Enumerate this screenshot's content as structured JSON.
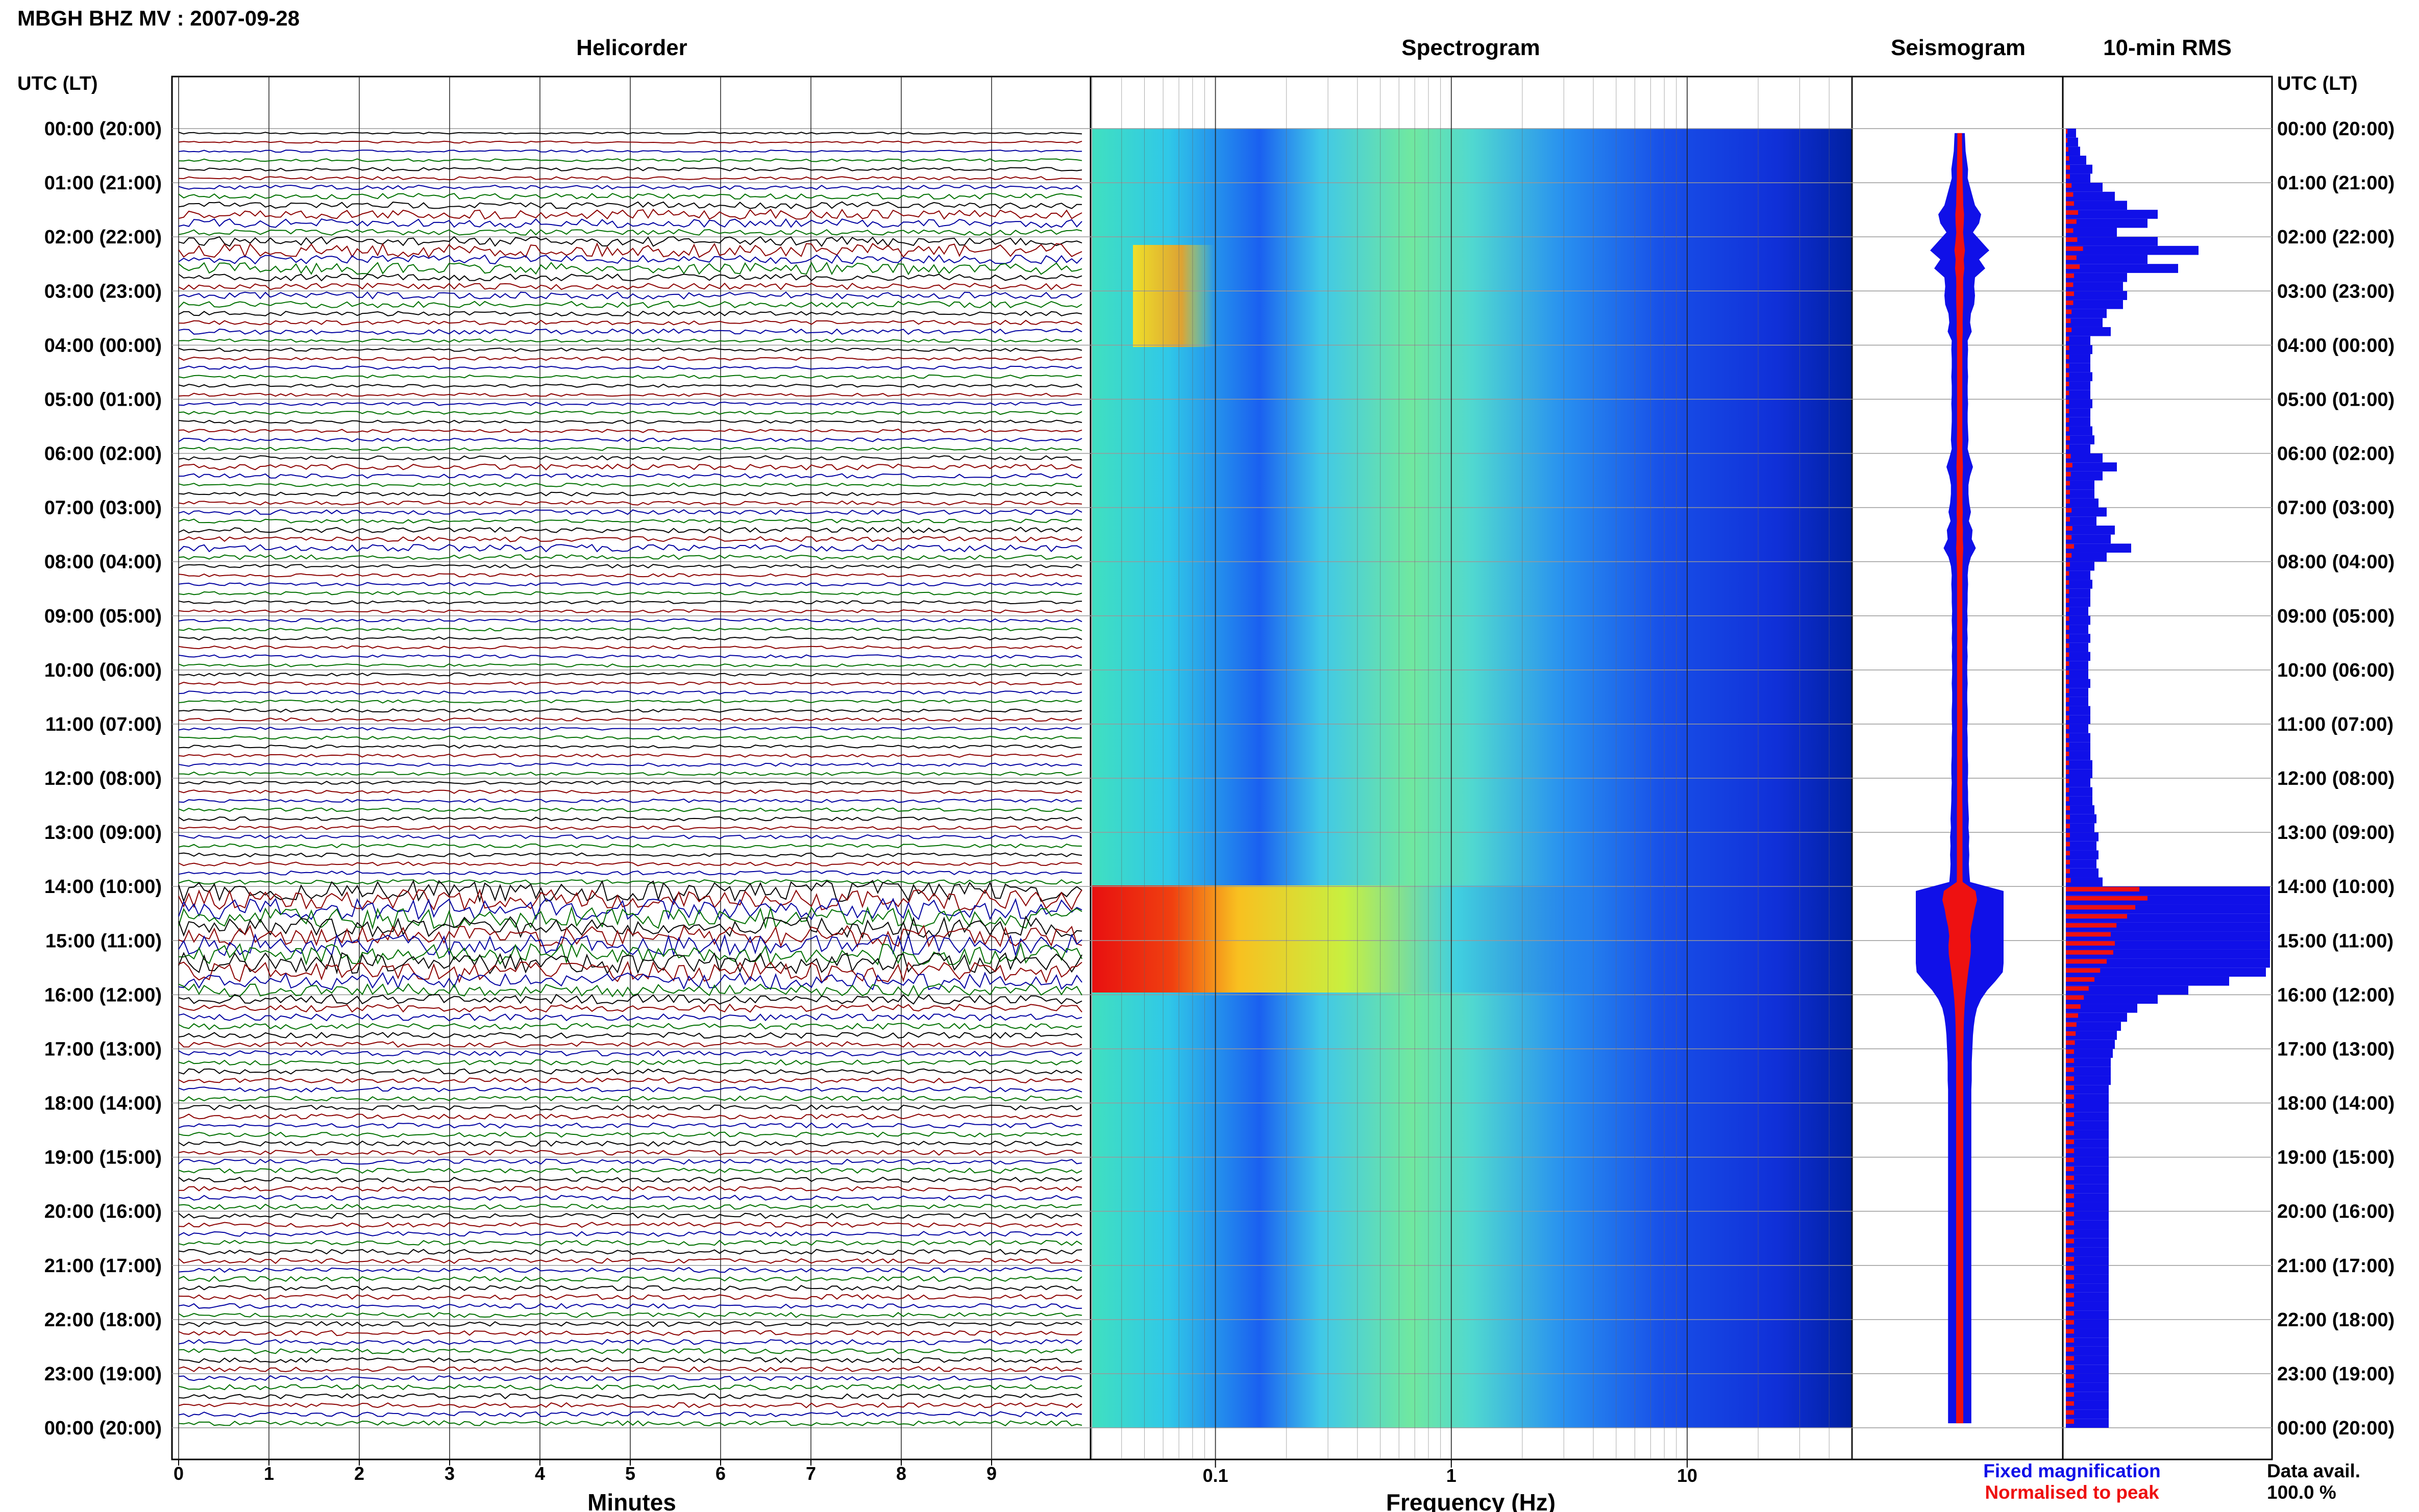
{
  "header": {
    "station_title": "MBGH BHZ MV : 2007-09-28"
  },
  "panels": {
    "helicorder": "Helicorder",
    "spectrogram": "Spectrogram",
    "seismogram": "Seismogram",
    "rms": "10-min RMS"
  },
  "axes": {
    "left_axis_title": "UTC (LT)",
    "right_axis_title": "UTC (LT)",
    "time_labels": [
      "00:00 (20:00)",
      "01:00 (21:00)",
      "02:00 (22:00)",
      "03:00 (23:00)",
      "04:00 (00:00)",
      "05:00 (01:00)",
      "06:00 (02:00)",
      "07:00 (03:00)",
      "08:00 (04:00)",
      "09:00 (05:00)",
      "10:00 (06:00)",
      "11:00 (07:00)",
      "12:00 (08:00)",
      "13:00 (09:00)",
      "14:00 (10:00)",
      "15:00 (11:00)",
      "16:00 (12:00)",
      "17:00 (13:00)",
      "18:00 (14:00)",
      "19:00 (15:00)",
      "20:00 (16:00)",
      "21:00 (17:00)",
      "22:00 (18:00)",
      "23:00 (19:00)",
      "00:00 (20:00)"
    ],
    "minutes_label": "Minutes",
    "minutes_ticks": [
      "0",
      "1",
      "2",
      "3",
      "4",
      "5",
      "6",
      "7",
      "8",
      "9"
    ],
    "frequency_label": "Frequency (Hz)",
    "frequency_ticks": [
      "0.1",
      "1",
      "10"
    ]
  },
  "legend": {
    "fixed_label": "Fixed magnification",
    "normalised_label": "Normalised to peak",
    "fixed_color": "#1010e8",
    "normalised_color": "#ee1111"
  },
  "availability": {
    "label": "Data avail.",
    "value": "100.0 %"
  },
  "colors": {
    "helicorder_traces": [
      "#000000",
      "#8b0000",
      "#0000a0",
      "#007000"
    ],
    "spectrogram_low": "#1030e0",
    "spectrogram_high": "#e81010",
    "rms_fixed": "#1010e8",
    "rms_normalised": "#ee1111"
  },
  "chart_data": {
    "type": "heatmap",
    "title": "MBGH BHZ MV : 2007-09-28",
    "ylabel": "UTC (LT)",
    "time_ylim_hours": [
      0,
      24
    ],
    "helicorder": {
      "xlabel": "Minutes",
      "xlim": [
        0,
        10
      ],
      "rows_per_hour": 6,
      "event_times_utc": [
        "01:20",
        "02:40",
        "06:00",
        "07:30",
        "13:00",
        "14:00",
        "15:00",
        "21:40"
      ]
    },
    "spectrogram": {
      "xlabel": "Frequency (Hz)",
      "xscale": "log",
      "xlim": [
        0.03,
        50
      ],
      "xticks": [
        0.1,
        1,
        10
      ],
      "peak_band_hz": [
        0.05,
        0.1
      ],
      "strong_event_utc": "14:00"
    },
    "rms_10min": {
      "series": [
        {
          "name": "Fixed magnification",
          "values": [
            0.05,
            0.06,
            0.07,
            0.1,
            0.13,
            0.12,
            0.18,
            0.24,
            0.3,
            0.45,
            0.4,
            0.25,
            0.45,
            0.65,
            0.4,
            0.55,
            0.3,
            0.28,
            0.3,
            0.28,
            0.2,
            0.18,
            0.22,
            0.12,
            0.13,
            0.12,
            0.12,
            0.13,
            0.12,
            0.12,
            0.13,
            0.12,
            0.12,
            0.13,
            0.14,
            0.12,
            0.18,
            0.25,
            0.18,
            0.14,
            0.14,
            0.16,
            0.2,
            0.15,
            0.24,
            0.22,
            0.32,
            0.2,
            0.14,
            0.12,
            0.13,
            0.12,
            0.12,
            0.11,
            0.12,
            0.11,
            0.12,
            0.11,
            0.12,
            0.11,
            0.11,
            0.12,
            0.11,
            0.11,
            0.12,
            0.12,
            0.11,
            0.12,
            0.12,
            0.12,
            0.13,
            0.13,
            0.12,
            0.13,
            0.13,
            0.14,
            0.15,
            0.14,
            0.16,
            0.15,
            0.16,
            0.15,
            0.16,
            0.18,
            1.0,
            1.0,
            1.0,
            1.0,
            1.0,
            1.0,
            1.0,
            1.0,
            1.0,
            0.98,
            0.8,
            0.6,
            0.45,
            0.35,
            0.3,
            0.27,
            0.25,
            0.24,
            0.23,
            0.22,
            0.22,
            0.22,
            0.21,
            0.21,
            0.21,
            0.21,
            0.21,
            0.21,
            0.21,
            0.21,
            0.21,
            0.21,
            0.21,
            0.21,
            0.21,
            0.21,
            0.21,
            0.21,
            0.21,
            0.21,
            0.21,
            0.21,
            0.21,
            0.21,
            0.21,
            0.21,
            0.21,
            0.21,
            0.21,
            0.21,
            0.21,
            0.21,
            0.21,
            0.21,
            0.21,
            0.21,
            0.21,
            0.21,
            0.21,
            0.21,
            0.21
          ]
        },
        {
          "name": "Normalised to peak",
          "values": [
            0.02,
            0.02,
            0.03,
            0.04,
            0.05,
            0.05,
            0.07,
            0.09,
            0.1,
            0.15,
            0.13,
            0.09,
            0.14,
            0.21,
            0.13,
            0.17,
            0.1,
            0.09,
            0.1,
            0.09,
            0.07,
            0.06,
            0.07,
            0.04,
            0.04,
            0.04,
            0.04,
            0.04,
            0.04,
            0.04,
            0.04,
            0.04,
            0.04,
            0.04,
            0.05,
            0.04,
            0.06,
            0.08,
            0.06,
            0.05,
            0.05,
            0.05,
            0.07,
            0.05,
            0.08,
            0.07,
            0.1,
            0.07,
            0.05,
            0.04,
            0.04,
            0.04,
            0.04,
            0.04,
            0.04,
            0.04,
            0.04,
            0.04,
            0.04,
            0.04,
            0.04,
            0.04,
            0.04,
            0.04,
            0.04,
            0.04,
            0.04,
            0.04,
            0.04,
            0.04,
            0.04,
            0.04,
            0.04,
            0.04,
            0.04,
            0.05,
            0.05,
            0.05,
            0.05,
            0.05,
            0.05,
            0.05,
            0.05,
            0.06,
            0.9,
            1.0,
            0.85,
            0.75,
            0.62,
            0.55,
            0.6,
            0.58,
            0.5,
            0.42,
            0.35,
            0.28,
            0.22,
            0.18,
            0.15,
            0.13,
            0.12,
            0.11,
            0.1,
            0.1,
            0.1,
            0.1,
            0.1,
            0.1,
            0.1,
            0.1,
            0.1,
            0.1,
            0.1,
            0.1,
            0.1,
            0.1,
            0.1,
            0.1,
            0.1,
            0.1,
            0.1,
            0.1,
            0.1,
            0.1,
            0.1,
            0.1,
            0.1,
            0.1,
            0.1,
            0.1,
            0.1,
            0.1,
            0.1,
            0.1,
            0.1,
            0.1,
            0.1,
            0.1,
            0.1,
            0.1,
            0.1,
            0.1,
            0.1,
            0.1,
            0.1
          ]
        }
      ]
    }
  }
}
